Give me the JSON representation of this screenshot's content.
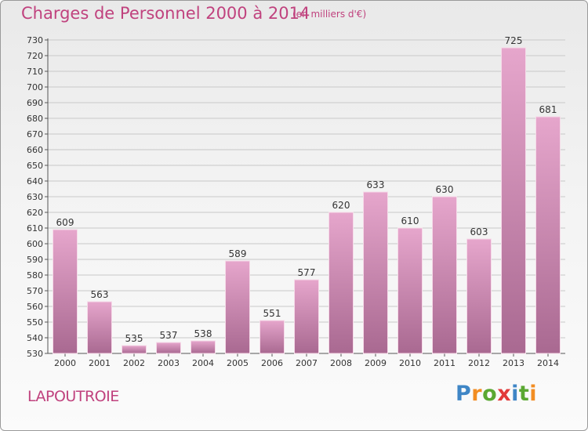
{
  "title": "Charges de Personnel 2000 à 2014",
  "subtitle": "(en milliers d'€)",
  "place": "LAPOUTROIE",
  "logo": {
    "letters": [
      "P",
      "r",
      "o",
      "x",
      "i",
      "t",
      "i"
    ],
    "colors": [
      "#3f86c6",
      "#f28d22",
      "#5aa832",
      "#e23a3a",
      "#3f86c6",
      "#5aa832",
      "#f28d22"
    ]
  },
  "colors": {
    "title": "#c0427e",
    "bar_top": "#e6a6cc",
    "bar_bottom": "#a96991",
    "grid": "#c8c8c8"
  },
  "chart_data": {
    "type": "bar",
    "title": "Charges de Personnel 2000 à 2014",
    "subtitle": "(en milliers d'€)",
    "xlabel": "",
    "ylabel": "",
    "categories": [
      "2000",
      "2001",
      "2002",
      "2003",
      "2004",
      "2005",
      "2006",
      "2007",
      "2008",
      "2009",
      "2010",
      "2011",
      "2012",
      "2013",
      "2014"
    ],
    "values": [
      609,
      563,
      535,
      537,
      538,
      589,
      551,
      577,
      620,
      633,
      610,
      630,
      603,
      725,
      681
    ],
    "ylim": [
      530,
      730
    ],
    "ytick_step": 10,
    "grid": true
  }
}
